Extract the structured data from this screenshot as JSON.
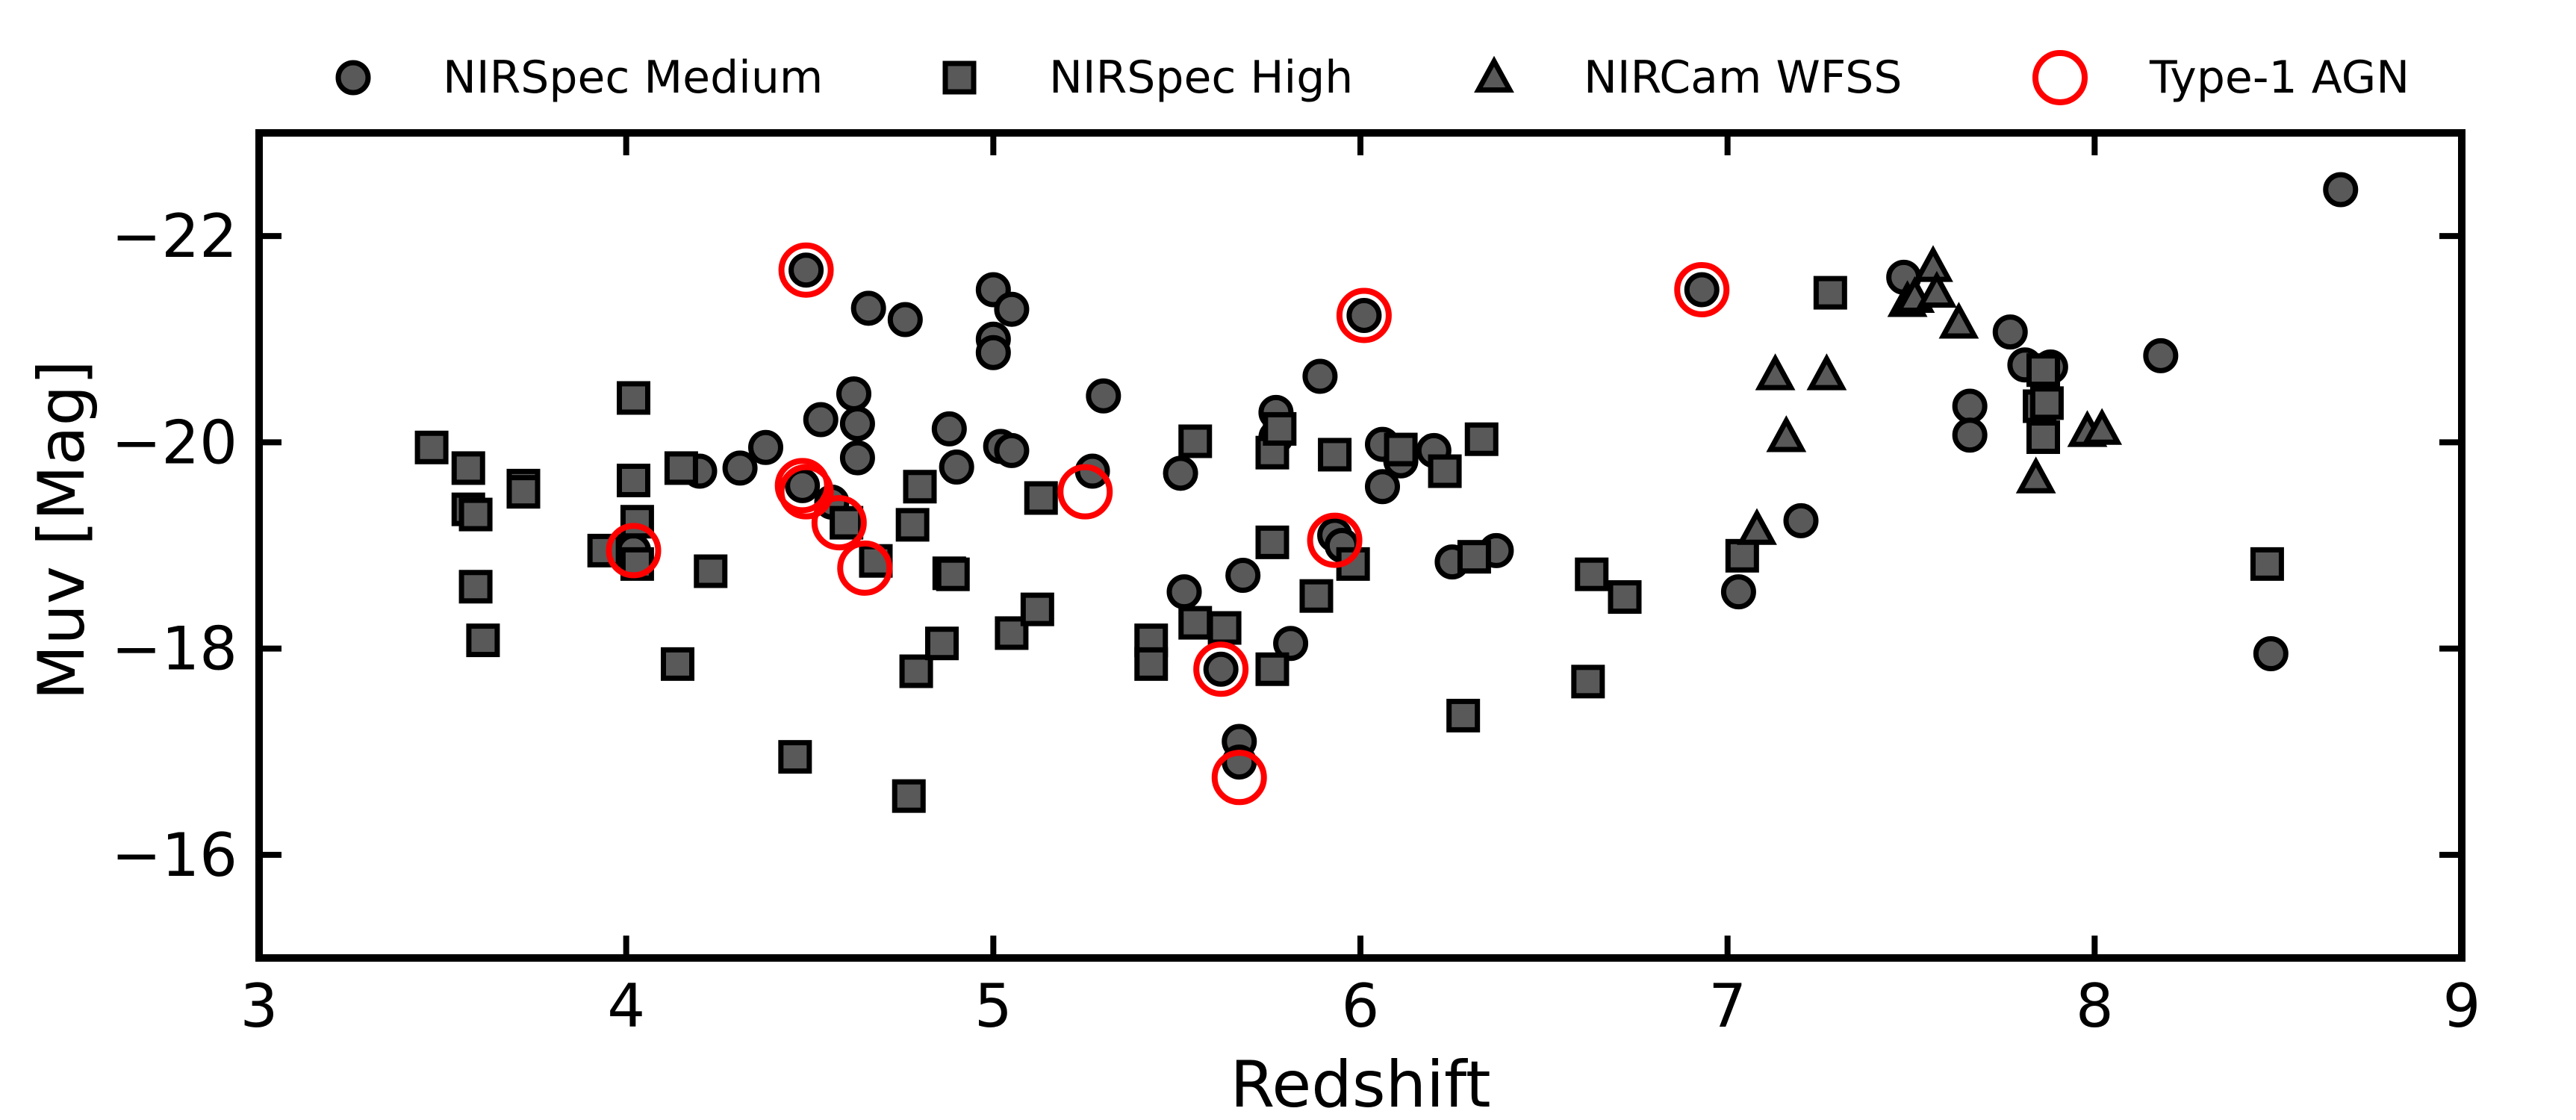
{
  "chart_data": {
    "type": "scatter",
    "title": "",
    "xlabel": "Redshift",
    "ylabel": "Muv [Mag]",
    "xlim": [
      3,
      9
    ],
    "ylim": [
      -15,
      -23
    ],
    "xticks": [
      3,
      4,
      5,
      6,
      7,
      8,
      9
    ],
    "xtick_labels": [
      "3",
      "4",
      "5",
      "6",
      "7",
      "8",
      "9"
    ],
    "yticks": [
      -16,
      -18,
      -20,
      -22
    ],
    "ytick_labels": [
      "−16",
      "−18",
      "−20",
      "−22"
    ],
    "legend_position": "top",
    "series": [
      {
        "name": "NIRSpec Medium",
        "marker": "circle",
        "color": "#595959",
        "points": [
          [
            4.02,
            -18.95
          ],
          [
            4.2,
            -19.72
          ],
          [
            4.31,
            -19.75
          ],
          [
            4.38,
            -19.95
          ],
          [
            4.48,
            -19.58
          ],
          [
            4.49,
            -21.67
          ],
          [
            4.53,
            -20.22
          ],
          [
            4.56,
            -19.42
          ],
          [
            4.62,
            -20.47
          ],
          [
            4.63,
            -20.18
          ],
          [
            4.63,
            -19.85
          ],
          [
            4.66,
            -21.3
          ],
          [
            4.76,
            -21.19
          ],
          [
            4.88,
            -20.13
          ],
          [
            4.9,
            -19.76
          ],
          [
            5.0,
            -21.48
          ],
          [
            5.0,
            -21.0
          ],
          [
            5.0,
            -20.87
          ],
          [
            5.02,
            -19.96
          ],
          [
            5.05,
            -19.92
          ],
          [
            5.05,
            -21.29
          ],
          [
            5.27,
            -19.72
          ],
          [
            5.3,
            -20.45
          ],
          [
            5.51,
            -19.7
          ],
          [
            5.52,
            -18.55
          ],
          [
            5.62,
            -17.8
          ],
          [
            5.67,
            -17.1
          ],
          [
            5.67,
            -16.9
          ],
          [
            5.68,
            -18.71
          ],
          [
            5.77,
            -20.29
          ],
          [
            5.77,
            -20.05
          ],
          [
            5.81,
            -18.05
          ],
          [
            5.89,
            -20.64
          ],
          [
            5.93,
            -19.1
          ],
          [
            5.95,
            -19.0
          ],
          [
            6.01,
            -21.23
          ],
          [
            6.06,
            -19.98
          ],
          [
            6.06,
            -19.57
          ],
          [
            6.11,
            -19.82
          ],
          [
            6.2,
            -19.92
          ],
          [
            6.25,
            -18.84
          ],
          [
            6.37,
            -18.95
          ],
          [
            6.93,
            -21.48
          ],
          [
            7.03,
            -18.55
          ],
          [
            7.2,
            -19.24
          ],
          [
            7.48,
            -21.6
          ],
          [
            7.77,
            -21.07
          ],
          [
            7.81,
            -20.75
          ],
          [
            7.88,
            -20.73
          ],
          [
            7.66,
            -20.35
          ],
          [
            7.66,
            -20.07
          ],
          [
            8.18,
            -20.84
          ],
          [
            8.48,
            -17.95
          ],
          [
            8.67,
            -22.45
          ]
        ]
      },
      {
        "name": "NIRSpec High",
        "marker": "square",
        "color": "#595959",
        "points": [
          [
            3.47,
            -19.95
          ],
          [
            3.57,
            -19.75
          ],
          [
            3.57,
            -19.35
          ],
          [
            3.59,
            -19.3
          ],
          [
            3.59,
            -18.6
          ],
          [
            3.61,
            -18.08
          ],
          [
            3.72,
            -19.58
          ],
          [
            3.72,
            -19.52
          ],
          [
            3.94,
            -18.95
          ],
          [
            4.02,
            -20.43
          ],
          [
            4.02,
            -19.63
          ],
          [
            4.03,
            -19.23
          ],
          [
            4.03,
            -18.82
          ],
          [
            4.14,
            -17.85
          ],
          [
            4.15,
            -19.75
          ],
          [
            4.23,
            -18.75
          ],
          [
            4.46,
            -16.95
          ],
          [
            4.6,
            -19.22
          ],
          [
            4.68,
            -18.85
          ],
          [
            4.77,
            -16.57
          ],
          [
            4.78,
            -19.2
          ],
          [
            4.79,
            -17.78
          ],
          [
            4.8,
            -19.57
          ],
          [
            4.86,
            -18.05
          ],
          [
            4.88,
            -18.73
          ],
          [
            4.89,
            -18.72
          ],
          [
            5.05,
            -18.15
          ],
          [
            5.12,
            -18.38
          ],
          [
            5.13,
            -19.46
          ],
          [
            5.43,
            -18.08
          ],
          [
            5.43,
            -17.85
          ],
          [
            5.55,
            -20.01
          ],
          [
            5.55,
            -18.25
          ],
          [
            5.63,
            -18.2
          ],
          [
            5.76,
            -17.8
          ],
          [
            5.76,
            -19.03
          ],
          [
            5.76,
            -19.9
          ],
          [
            5.78,
            -20.13
          ],
          [
            5.88,
            -18.51
          ],
          [
            5.93,
            -19.88
          ],
          [
            5.98,
            -18.82
          ],
          [
            6.11,
            -19.93
          ],
          [
            6.23,
            -19.72
          ],
          [
            6.28,
            -17.35
          ],
          [
            6.31,
            -18.89
          ],
          [
            6.33,
            -20.03
          ],
          [
            6.62,
            -17.68
          ],
          [
            6.63,
            -18.72
          ],
          [
            6.72,
            -18.5
          ],
          [
            7.04,
            -18.9
          ],
          [
            7.28,
            -21.45
          ],
          [
            7.85,
            -20.35
          ],
          [
            7.86,
            -20.7
          ],
          [
            7.86,
            -20.05
          ],
          [
            7.87,
            -20.38
          ],
          [
            8.47,
            -18.82
          ]
        ]
      },
      {
        "name": "NIRCam WFSS",
        "marker": "triangle",
        "color": "#595959",
        "points": [
          [
            7.08,
            -19.15
          ],
          [
            7.13,
            -20.65
          ],
          [
            7.16,
            -20.05
          ],
          [
            7.27,
            -20.65
          ],
          [
            7.49,
            -21.36
          ],
          [
            7.51,
            -21.4
          ],
          [
            7.56,
            -21.7
          ],
          [
            7.57,
            -21.45
          ],
          [
            7.63,
            -21.15
          ],
          [
            7.84,
            -19.65
          ],
          [
            7.98,
            -20.1
          ],
          [
            8.02,
            -20.12
          ]
        ]
      },
      {
        "name": "Type-1 AGN",
        "marker": "open-circle",
        "color": "#ff0000",
        "points": [
          [
            4.02,
            -18.95
          ],
          [
            4.48,
            -19.58
          ],
          [
            4.49,
            -21.67
          ],
          [
            4.49,
            -19.52
          ],
          [
            4.58,
            -19.22
          ],
          [
            4.65,
            -18.78
          ],
          [
            5.25,
            -19.52
          ],
          [
            5.62,
            -17.8
          ],
          [
            5.67,
            -16.75
          ],
          [
            5.93,
            -19.05
          ],
          [
            6.01,
            -21.23
          ],
          [
            6.93,
            -21.48
          ]
        ]
      }
    ]
  }
}
